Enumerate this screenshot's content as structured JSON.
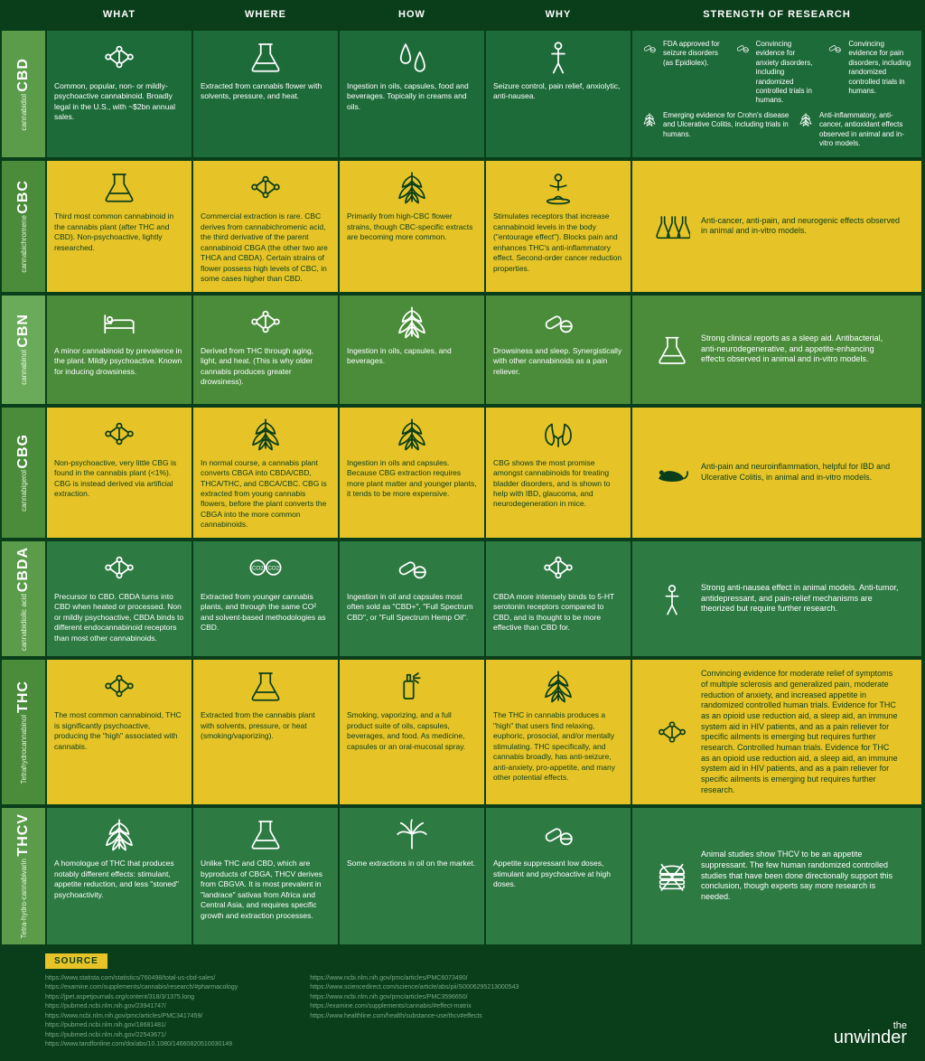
{
  "branding": {
    "the": "the",
    "name": "unwinder"
  },
  "headers": [
    "WHAT",
    "WHERE",
    "HOW",
    "WHY",
    "STRENGTH OF RESEARCH"
  ],
  "source_label": "SOURCE",
  "sources_left": [
    "https://www.statista.com/statistics/760498/total-us-cbd-sales/",
    "https://examine.com/supplements/cannabis/research/#pharmacology",
    "https://jpet.aspetjournals.org/content/318/3/1375.long",
    "https://pubmed.ncbi.nlm.nih.gov/23941747/",
    "https://www.ncbi.nlm.nih.gov/pmc/articles/PMC3417459/",
    "https://pubmed.ncbi.nlm.nih.gov/18681481/",
    "https://pubmed.ncbi.nlm.nih.gov/22543671/",
    "https://www.tandfonline.com/doi/abs/10.1080/14660820510030149"
  ],
  "sources_right": [
    "https://www.ncbi.nlm.nih.gov/pmc/articles/PMC6073490/",
    "https://www.sciencedirect.com/science/article/abs/pii/S0006295213000543",
    "https://www.ncbi.nlm.nih.gov/pmc/articles/PMC3596650/",
    "https://examine.com/supplements/cannabis/#effect-matrix",
    "https://www.healthline.com/health/substance-use/thcv#effects"
  ],
  "rows": [
    {
      "abbr": "CBD",
      "full": "cannabidiol",
      "style": "darkgreen",
      "what": "Common, popular, non- or mildly-psychoactive cannabinoid. Broadly legal in the U.S., with ~$2bn annual sales.",
      "where": "Extracted from cannabis flower with solvents, pressure, and heat.",
      "how": "Ingestion in oils, capsules, food and beverages. Topically in creams and oils.",
      "why": "Seizure control, pain relief, anxiolytic, anti-nausea.",
      "strength_multi": [
        "FDA approved for seizure disorders (as Epidiolex).",
        "Convincing evidence for anxiety disorders, including randomized controlled trials in humans.",
        "Convincing evidence for pain disorders, including randomized controlled trials in humans.",
        "Emerging evidence for Crohn's disease and Ulcerative Colitis, including trials in humans.",
        "Anti-inflammatory, anti-cancer, antioxidant effects observed in animal and in-vitro models."
      ]
    },
    {
      "abbr": "CBC",
      "full": "cannabichromene",
      "style": "yellow",
      "what": "Third most common cannabinoid in the cannabis plant (after THC and CBD). Non-psychoactive, lightly researched.",
      "where": "Commercial extraction is rare. CBC derives from cannabichromenic acid, the third derivative of the parent cannabinoid CBGA (the other two are THCA and CBDA). Certain strains of flower possess high levels of CBC, in some cases higher than CBD.",
      "how": "Primarily from high-CBC flower strains, though CBC-specific extracts are becoming more common.",
      "why": "Stimulates receptors that increase cannabinoid levels in the body (\"entourage effect\"). Blocks pain and enhances THC's anti-inflammatory effect. Second-order cancer reduction properties.",
      "strength": "Anti-cancer, anti-pain, and neurogenic effects observed in animal and in-vitro models."
    },
    {
      "abbr": "CBN",
      "full": "cannabinol",
      "style": "midgreen",
      "what": "A minor cannabinoid by prevalence in the plant. Mildly psychoactive. Known for inducing drowsiness.",
      "where": "Derived from THC through aging, light, and heat. (This is why older cannabis produces greater drowsiness).",
      "how": "Ingestion in oils, capsules, and beverages.",
      "why": "Drowsiness and sleep. Synergistically with other cannabinoids as a pain reliever.",
      "strength": "Strong clinical reports as a sleep aid. Antibacterial, anti-neurodegenerative, and appetite-enhancing effects observed in animal and in-vitro models."
    },
    {
      "abbr": "CBG",
      "full": "cannabigerol",
      "style": "yellow",
      "what": "Non-psychoactive, very little CBG is found in the cannabis plant (<1%). CBG is instead derived via artificial extraction.",
      "where": "In normal course, a cannabis plant converts CBGA into CBDA/CBD, THCA/THC, and CBCA/CBC. CBG is extracted from young cannabis flowers, before the plant converts the CBGA into the more common cannabinoids.",
      "how": "Ingestion in oils and capsules. Because CBG extraction requires more plant matter and younger plants, it tends to be more expensive.",
      "why": "CBG shows the most promise amongst cannabinoids for treating bladder disorders, and is shown to help with IBD, glaucoma, and neurodegeneration in mice.",
      "strength": "Anti-pain and neuroinflammation, helpful for IBD and Ulcerative Colitis, in animal and in-vitro models."
    },
    {
      "abbr": "CBDA",
      "full": "cannabidiolic acid",
      "style": "green2",
      "what": "Precursor to CBD. CBDA turns into CBD when heated or processed. Non or mildly psychoactive, CBDA binds to different endocannabinoid receptors than most other cannabinoids.",
      "where": "Extracted from younger cannabis plants, and through the same CO² and solvent-based methodologies as CBD.",
      "how": "Ingestion in oil and capsules most often sold as \"CBD+\", \"Full Spectrum CBD\", or \"Full Spectrum Hemp Oil\".",
      "why": "CBDA more intensely binds to 5-HT serotonin receptors compared to CBD, and is thought to be more effective than CBD for.",
      "strength": "Strong anti-nausea effect in animal models. Anti-tumor, antidepressant, and pain-relief mechanisms are theorized but require further research."
    },
    {
      "abbr": "THC",
      "full": "Tetrahydrocannabinol",
      "style": "yellow",
      "what": "The most common cannabinoid, THC is significantly psychoactive, producing the \"high\" associated with cannabis.",
      "where": "Extracted from the cannabis plant with solvents, pressure, or heat (smoking/vaporizing).",
      "how": "Smoking, vaporizing, and a full product suite of oils, capsules, beverages, and food. As medicine, capsules or an oral-mucosal spray.",
      "why": "The THC in cannabis produces a \"high\" that users find relaxing, euphoric, prosocial, and/or mentally stimulating. THC specifically, and cannabis broadly, has anti-seizure, anti-anxiety, pro-appetite, and many other potential effects.",
      "strength": "Convincing evidence for moderate relief of symptoms of multiple sclerosis and generalized pain, moderate reduction of anxiety, and increased appetite in randomized controlled human trials. Evidence for THC as an opioid use reduction aid, a sleep aid, an immune system aid in HIV patients, and as a pain reliever for specific ailments is emerging but requires further research. Controlled human trials. Evidence for THC as an opioid use reduction aid, a sleep aid, an immune system aid in HIV patients, and as a pain reliever for specific ailments is emerging but requires further research."
    },
    {
      "abbr": "THCV",
      "full": "Tetra-hydro-cannabivarin",
      "style": "green2",
      "what": "A homologue of THC that produces notably different effects: stimulant, appetite reduction, and less \"stoned\" psychoactivity.",
      "where": "Unlike THC and CBD, which are byproducts of CBGA, THCV derives from CBGVA. It is most prevalent in \"landrace\" sativas from Africa and Central Asia, and requires specific growth and extraction processes.",
      "how": "Some extractions in oil on the market.",
      "why": "Appetite suppressant low doses, stimulant and psychoactive at high doses.",
      "strength": "Animal studies show THCV to be an appetite suppressant. The few human randomized controlled studies that have been done directionally support this conclusion, though experts say more research is needed."
    }
  ],
  "icons": {
    "molecule": "molecule",
    "flask": "flask",
    "drops": "drops",
    "body": "body",
    "leaf": "leaf",
    "pills": "pills",
    "bed": "bed",
    "virus": "virus",
    "mouse": "mouse",
    "burger": "burger"
  }
}
